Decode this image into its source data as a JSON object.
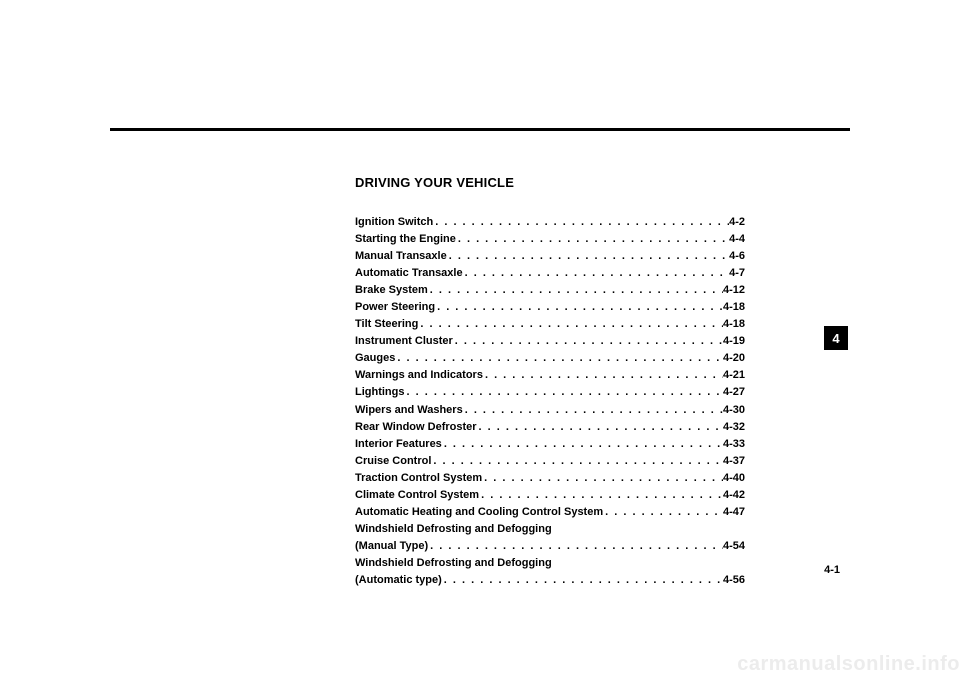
{
  "title": "DRIVING YOUR VEHICLE",
  "toc": [
    {
      "label": "Ignition Switch",
      "page": "4-2"
    },
    {
      "label": "Starting the Engine",
      "page": "4-4"
    },
    {
      "label": "Manual Transaxle",
      "page": "4-6"
    },
    {
      "label": "Automatic Transaxle",
      "page": "4-7"
    },
    {
      "label": "Brake System",
      "page": "4-12"
    },
    {
      "label": "Power Steering",
      "page": "4-18"
    },
    {
      "label": "Tilt Steering",
      "page": "4-18"
    },
    {
      "label": "Instrument Cluster",
      "page": "4-19"
    },
    {
      "label": "Gauges",
      "page": "4-20"
    },
    {
      "label": "Warnings and Indicators",
      "page": "4-21"
    },
    {
      "label": "Lightings",
      "page": "4-27"
    },
    {
      "label": "Wipers and Washers",
      "page": "4-30"
    },
    {
      "label": "Rear Window Defroster",
      "page": "4-32"
    },
    {
      "label": "Interior Features",
      "page": "4-33"
    },
    {
      "label": "Cruise Control",
      "page": "4-37"
    },
    {
      "label": "Traction Control System",
      "page": "4-40"
    },
    {
      "label": "Climate Control System",
      "page": "4-42"
    },
    {
      "label": "Automatic Heating and Cooling Control System",
      "page": "4-47"
    },
    {
      "label": "Windshield Defrosting and Defogging",
      "page": ""
    },
    {
      "label": "(Manual Type)",
      "page": "4-54"
    },
    {
      "label": "Windshield Defrosting and Defogging",
      "page": ""
    },
    {
      "label": "(Automatic type)",
      "page": "4-56"
    }
  ],
  "sideTab": "4",
  "pageNumber": "4-1",
  "watermark": "carmanualsonline.info"
}
